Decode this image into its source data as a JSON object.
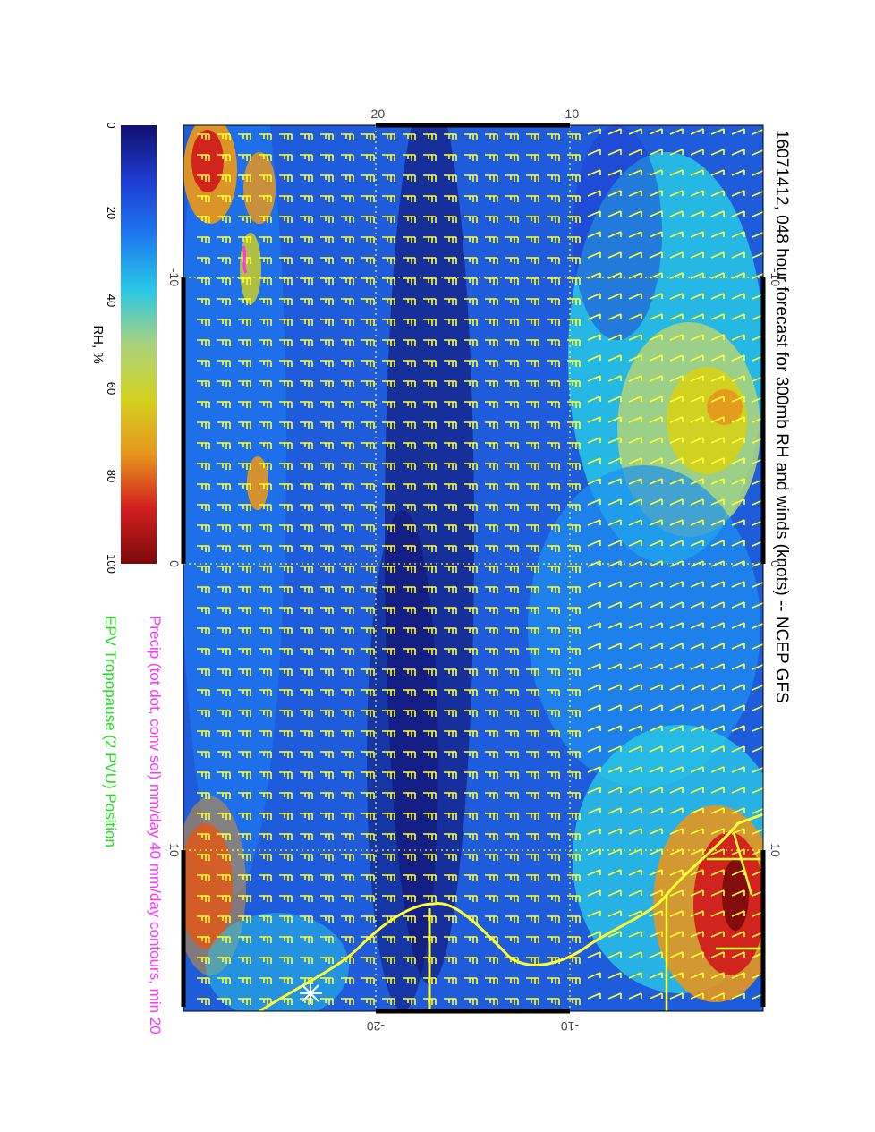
{
  "title": "16071412, 048 hour forecast for 300mb RH and winds (knots) -- NCEP GFS",
  "precip_note": "Precip (tot dot, conv sol) mm/day 40 mm/day contours, min 20",
  "epv_note": "EPV Tropopause (2 PVU) Position",
  "colorbar": {
    "label": "RH, %",
    "ticks": [
      "0",
      "20",
      "40",
      "60",
      "80",
      "100"
    ],
    "colors": [
      "#10106e",
      "#1e3cd2",
      "#1e78f0",
      "#28c8e6",
      "#aad27d",
      "#d2d21e",
      "#e6961e",
      "#d21e1e",
      "#7a0a0a"
    ]
  },
  "axes": {
    "top_ticks": [
      "-20",
      "-10"
    ],
    "bottom_ticks": [
      "-20",
      "-10"
    ],
    "left_ticks": [
      "-10",
      "0",
      "10"
    ],
    "right_ticks": [
      "-10",
      "0",
      "10"
    ]
  },
  "map_colors": {
    "coast": "#ffff33",
    "barbs": "#ffff33",
    "grid": "#ffff33",
    "precip": "#ff33ff",
    "epv": "#33ff33"
  }
}
